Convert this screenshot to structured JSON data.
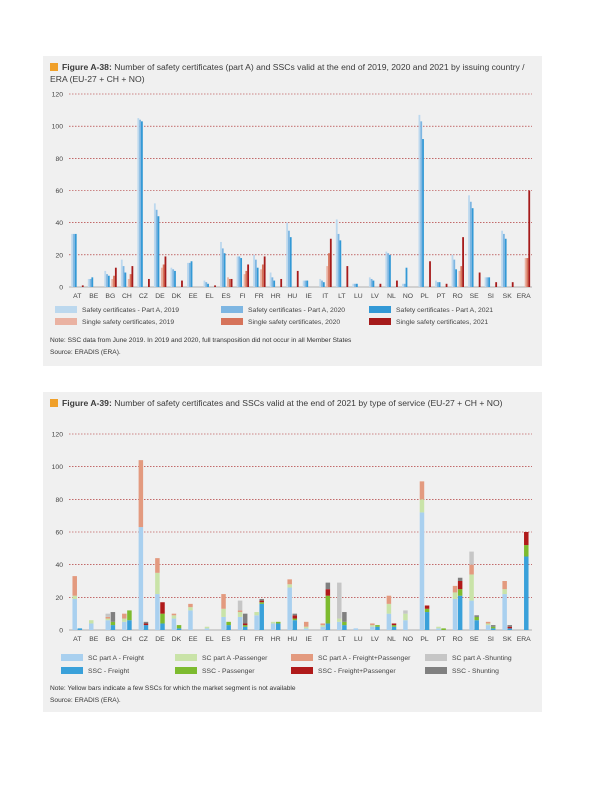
{
  "fig38": {
    "label": "Figure A-38:",
    "title": "Number of safety certificates (part A) and SSCs valid at the end of 2019, 2020 and 2021 by issuing country / ERA (EU-27 + CH + NO)",
    "note": "Note: SSC data from June 2019. In 2019 and 2020, full transposition did not occur in all Member States",
    "source": "Source: ERADIS (ERA)."
  },
  "fig39": {
    "label": "Figure A-39:",
    "title": "Number of safety certificates and SSCs valid at the end of 2021 by type of service (EU-27 + CH + NO)",
    "note": "Note: Yellow bars indicate a few SSCs for which the market segment is not available",
    "source": "Source: ERADIS (ERA)."
  },
  "chart_data": [
    {
      "type": "bar",
      "categories": [
        "AT",
        "BE",
        "BG",
        "CH",
        "CZ",
        "DE",
        "DK",
        "EE",
        "EL",
        "ES",
        "FI",
        "FR",
        "HR",
        "HU",
        "IE",
        "IT",
        "LT",
        "LU",
        "LV",
        "NL",
        "NO",
        "PL",
        "PT",
        "RO",
        "SE",
        "SI",
        "SK",
        "ERA"
      ],
      "ylim": [
        0,
        120
      ],
      "yticks": [
        "0",
        "20",
        "40",
        "60",
        "80",
        "100",
        "120"
      ],
      "grid": true,
      "legend_position": "bottom",
      "series": [
        {
          "name": "Safety certificates - Part A, 2019",
          "color": "#bcd8ee",
          "values": [
            33,
            5,
            10,
            17,
            105,
            52,
            12,
            15,
            4,
            28,
            19,
            20,
            9,
            40,
            4,
            5,
            42,
            2,
            6,
            22,
            2,
            107,
            4,
            20,
            57,
            6,
            35,
            0
          ]
        },
        {
          "name": "Safety certificates - Part A, 2020",
          "color": "#7eb6e2",
          "values": [
            33,
            5,
            8,
            13,
            104,
            48,
            11,
            15,
            3,
            24,
            19,
            17,
            6,
            35,
            4,
            4,
            33,
            2,
            5,
            21,
            2,
            103,
            3,
            17,
            53,
            6,
            33,
            0
          ]
        },
        {
          "name": "Safety certificates - Part A, 2021",
          "color": "#3399d6",
          "values": [
            33,
            6,
            7,
            9,
            103,
            44,
            10,
            16,
            2,
            21,
            18,
            12,
            4,
            31,
            4,
            3,
            29,
            2,
            4,
            20,
            12,
            92,
            3,
            11,
            49,
            6,
            30,
            0
          ]
        },
        {
          "name": "Single safety certificates, 2019",
          "color": "#eab2a2",
          "values": [
            0,
            0,
            5,
            5,
            0,
            12,
            0,
            0,
            0,
            6,
            8,
            11,
            0,
            0,
            0,
            13,
            0,
            0,
            0,
            0,
            0,
            0,
            0,
            10,
            0,
            0,
            0,
            18
          ]
        },
        {
          "name": "Single safety certificates, 2020",
          "color": "#d6735a",
          "values": [
            0,
            0,
            7,
            8,
            0,
            14,
            0,
            0,
            0,
            5,
            10,
            14,
            0,
            0,
            0,
            21,
            0,
            0,
            0,
            0,
            0,
            0,
            0,
            13,
            0,
            0,
            0,
            18
          ]
        },
        {
          "name": "Single safety certificates, 2021",
          "color": "#a61b1b",
          "values": [
            1,
            0,
            12,
            13,
            5,
            19,
            4,
            0,
            1,
            5,
            14,
            19,
            5,
            10,
            0,
            30,
            13,
            0,
            2,
            4,
            0,
            16,
            2,
            31,
            9,
            3,
            3,
            60
          ]
        }
      ]
    },
    {
      "type": "bar",
      "stacked": true,
      "categories": [
        "AT",
        "BE",
        "BG",
        "CH",
        "CZ",
        "DE",
        "DK",
        "EE",
        "EL",
        "ES",
        "FI",
        "FR",
        "HR",
        "HU",
        "IE",
        "IT",
        "LT",
        "LU",
        "LV",
        "NL",
        "NO",
        "PL",
        "PT",
        "RO",
        "SE",
        "SI",
        "SK",
        "ERA"
      ],
      "ylim": [
        0,
        120
      ],
      "yticks": [
        "0",
        "20",
        "40",
        "60",
        "80",
        "100",
        "120"
      ],
      "grid": true,
      "legend_position": "bottom",
      "groups": [
        {
          "name": "Part A",
          "series": [
            {
              "name": "SC part A - Freight",
              "color": "#a9d0ef",
              "values": [
                19,
                4,
                6,
                5,
                63,
                22,
                7,
                12,
                1,
                8,
                8,
                9,
                4,
                26,
                1,
                2,
                5,
                1,
                2,
                10,
                6,
                72,
                1,
                19,
                18,
                3,
                22,
                0
              ]
            },
            {
              "name": "SC part A -Passenger",
              "color": "#c9e3a8",
              "values": [
                2,
                2,
                1,
                2,
                0,
                13,
                2,
                2,
                1,
                5,
                3,
                2,
                1,
                2,
                1,
                1,
                2,
                0,
                1,
                6,
                4,
                8,
                1,
                4,
                16,
                1,
                3,
                0
              ]
            },
            {
              "name": "SC part A - Freight+Passenger",
              "color": "#e39a7f",
              "values": [
                12,
                0,
                1,
                3,
                41,
                9,
                1,
                2,
                0,
                9,
                1,
                0,
                0,
                3,
                3,
                1,
                0,
                0,
                1,
                5,
                0,
                11,
                0,
                4,
                6,
                1,
                5,
                0
              ]
            },
            {
              "name": "SC part A -Shunting",
              "color": "#c6c6c6",
              "values": [
                0,
                0,
                2,
                0,
                0,
                0,
                0,
                0,
                0,
                0,
                6,
                0,
                0,
                0,
                0,
                0,
                22,
                0,
                0,
                0,
                2,
                0,
                0,
                0,
                8,
                0,
                0,
                0
              ]
            }
          ]
        },
        {
          "name": "SSC",
          "series": [
            {
              "name": "SSC - Freight",
              "color": "#3aa1da",
              "values": [
                1,
                0,
                3,
                6,
                3,
                4,
                1,
                0,
                0,
                3,
                2,
                16,
                4,
                6,
                0,
                4,
                3,
                0,
                2,
                2,
                0,
                11,
                0,
                21,
                6,
                1,
                1,
                45
              ]
            },
            {
              "name": "SSC - Passenger",
              "color": "#7dbb2f",
              "values": [
                0,
                0,
                2,
                6,
                0,
                6,
                2,
                0,
                0,
                2,
                1,
                1,
                1,
                1,
                0,
                17,
                2,
                0,
                1,
                1,
                0,
                2,
                1,
                4,
                2,
                1,
                0,
                7
              ]
            },
            {
              "name": "SSC - Freight+Passenger",
              "color": "#b01a1a",
              "values": [
                0,
                0,
                0,
                0,
                1,
                7,
                0,
                0,
                0,
                0,
                1,
                1,
                0,
                2,
                0,
                4,
                0,
                0,
                0,
                1,
                0,
                2,
                0,
                5,
                0,
                0,
                1,
                8
              ]
            },
            {
              "name": "SSC - Shunting",
              "color": "#808080",
              "values": [
                0,
                0,
                6,
                0,
                1,
                0,
                0,
                0,
                0,
                0,
                6,
                1,
                0,
                1,
                0,
                4,
                6,
                0,
                0,
                0,
                0,
                0,
                0,
                2,
                1,
                1,
                1,
                0
              ]
            }
          ]
        }
      ],
      "legend": [
        {
          "name": "SC part A - Freight",
          "color": "#a9d0ef"
        },
        {
          "name": "SC part A -Passenger",
          "color": "#c9e3a8"
        },
        {
          "name": "SC part A - Freight+Passenger",
          "color": "#e39a7f"
        },
        {
          "name": "SC part A -Shunting",
          "color": "#c6c6c6"
        },
        {
          "name": "SSC - Freight",
          "color": "#3aa1da"
        },
        {
          "name": "SSC - Passenger",
          "color": "#7dbb2f"
        },
        {
          "name": "SSC - Freight+Passenger",
          "color": "#b01a1a"
        },
        {
          "name": "SSC - Shunting",
          "color": "#808080"
        }
      ]
    }
  ]
}
